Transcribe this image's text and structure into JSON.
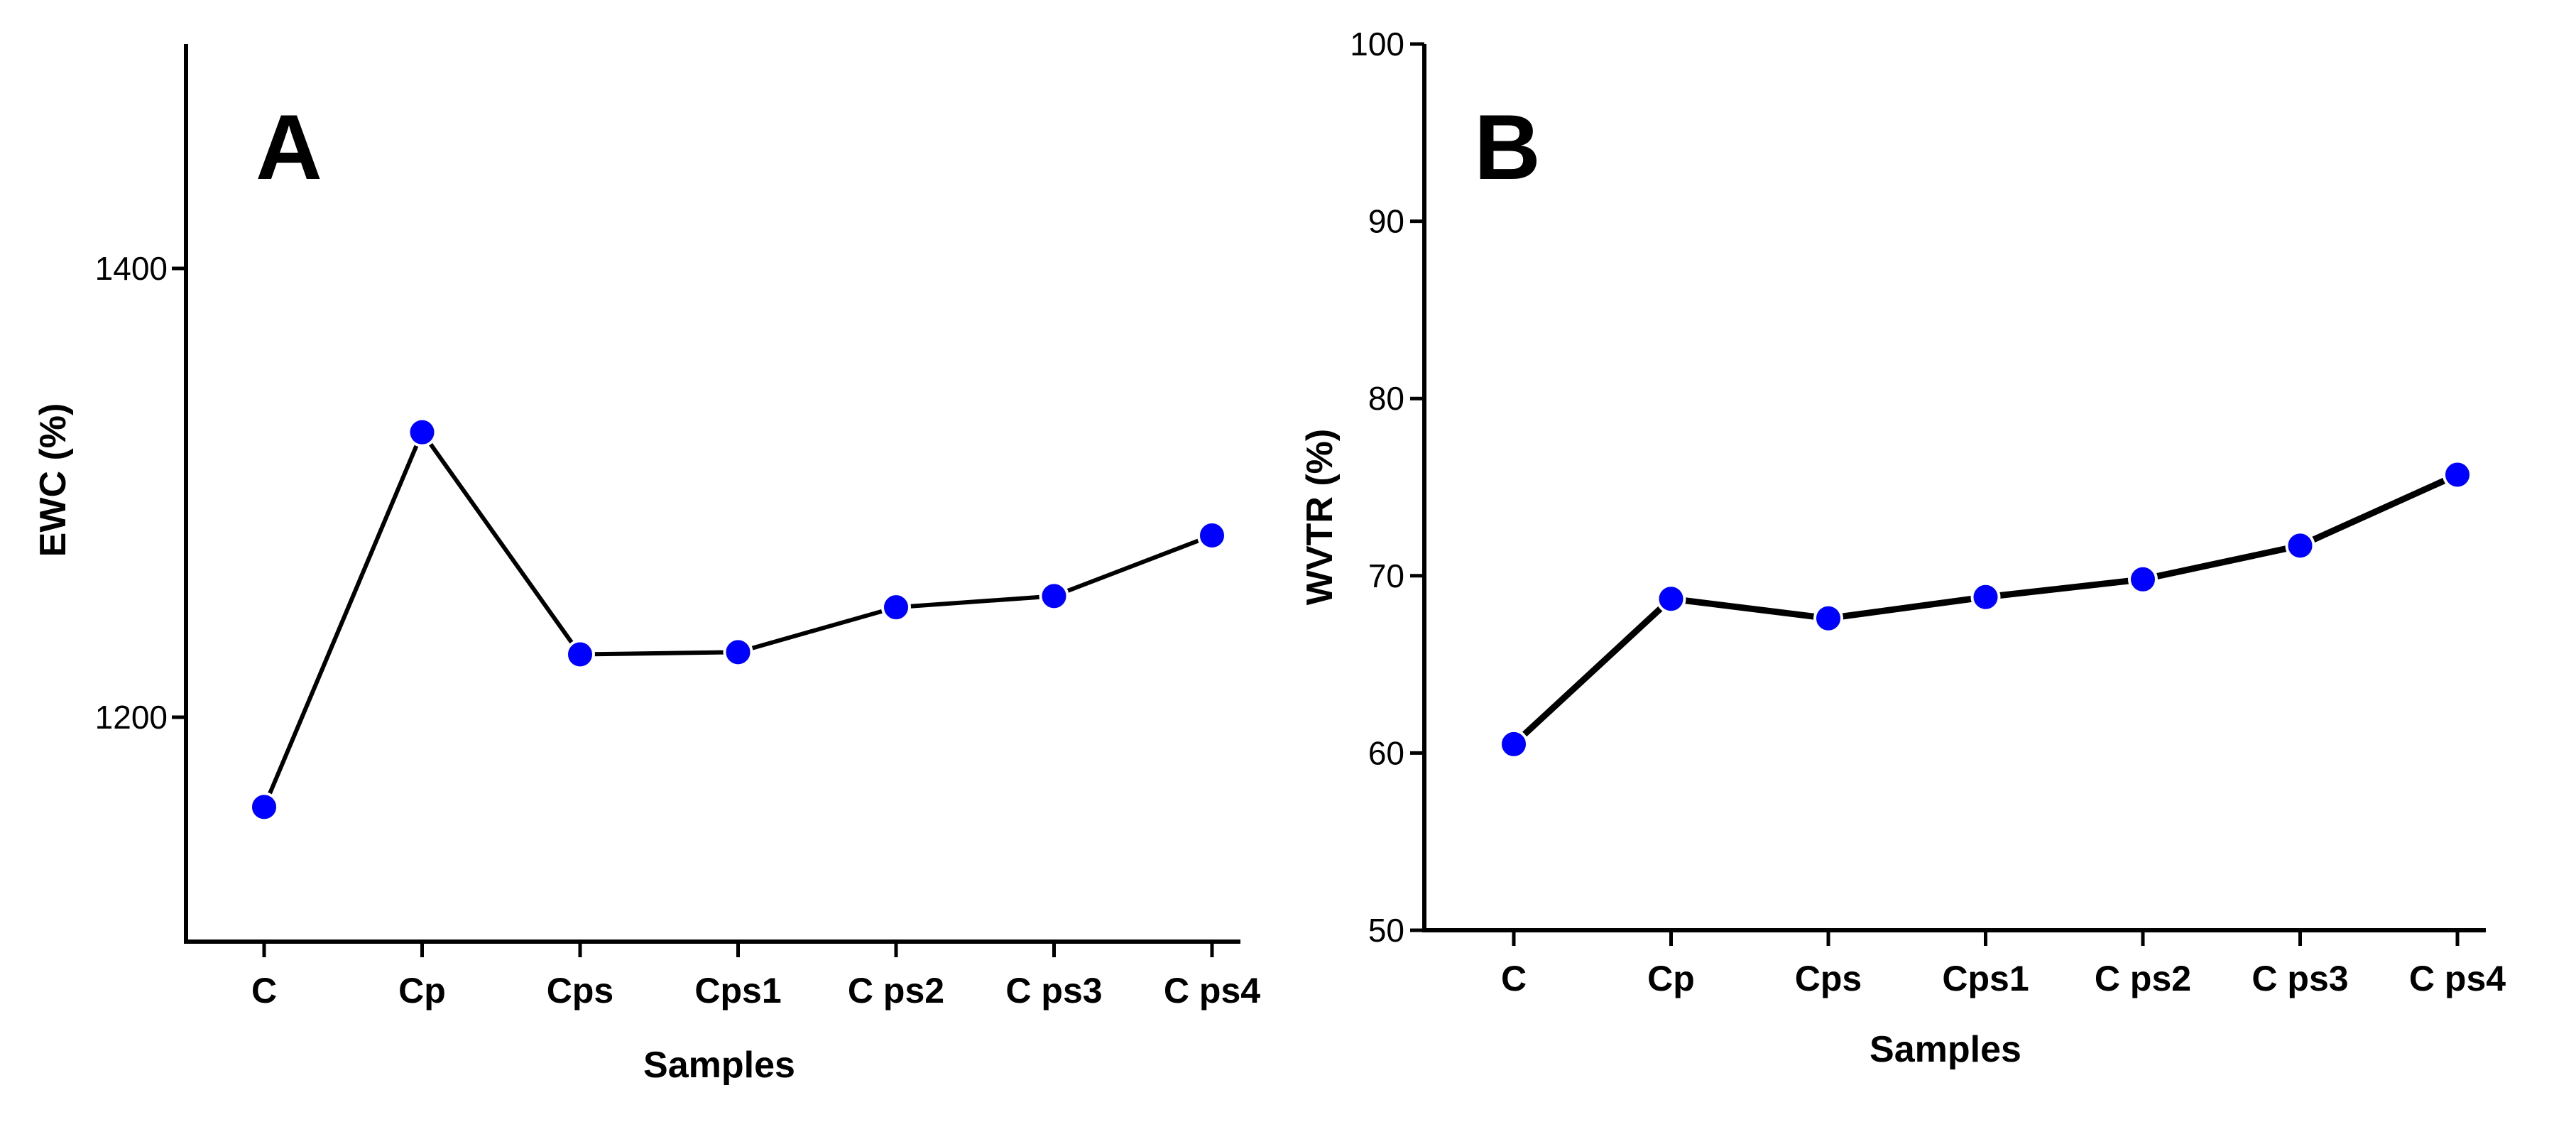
{
  "chart_data": [
    {
      "type": "line",
      "panel_label": "A",
      "title": "",
      "xlabel": "Samples",
      "ylabel": "EWC (%)",
      "categories": [
        "C",
        "Cp",
        "Cps",
        "Cps1",
        "C ps2",
        "C ps3",
        "C ps4"
      ],
      "series": [
        {
          "name": "EWC",
          "values": [
            1160,
            1327,
            1228,
            1229,
            1249,
            1254,
            1281
          ]
        }
      ],
      "ylim": [
        1100,
        1500
      ],
      "yticks": [
        1200,
        1400
      ],
      "grid": false,
      "legend": "none",
      "line_color": "#000000",
      "marker_color": "#0000ff"
    },
    {
      "type": "line",
      "panel_label": "B",
      "title": "",
      "xlabel": "Samples",
      "ylabel": "WVTR (%)",
      "categories": [
        "C",
        "Cp",
        "Cps",
        "Cps1",
        "C ps2",
        "C ps3",
        "C ps4"
      ],
      "series": [
        {
          "name": "WVTR",
          "values": [
            60.5,
            68.7,
            67.6,
            68.8,
            69.8,
            71.7,
            75.7
          ]
        }
      ],
      "ylim": [
        50,
        100
      ],
      "yticks": [
        50,
        60,
        70,
        80,
        90,
        100
      ],
      "grid": false,
      "legend": "none",
      "line_color": "#000000",
      "marker_color": "#0000ff"
    }
  ]
}
